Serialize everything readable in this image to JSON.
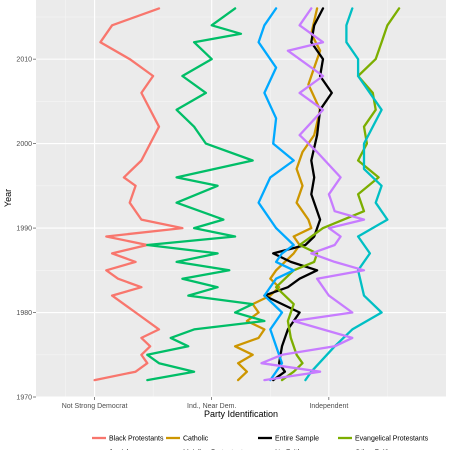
{
  "chart_data": {
    "type": "line",
    "xlabel": "Party Identification",
    "ylabel": "Year",
    "xlim": [
      0.5,
      7.5
    ],
    "ylim": [
      1970,
      2017
    ],
    "x_ticks": [
      {
        "value": 1.5,
        "label": "Not Strong Democrat"
      },
      {
        "value": 3.5,
        "label": "Ind., Near Dem."
      },
      {
        "value": 5.5,
        "label": "Independent"
      }
    ],
    "y_ticks": [
      1970,
      1980,
      1990,
      2000,
      2010
    ],
    "grid": true,
    "legend_position": "bottom",
    "legend_columns": 4,
    "series": [
      {
        "name": "Black Protestants",
        "color": "#F8766D",
        "points": [
          [
            1.5,
            1972
          ],
          [
            2.2,
            1973
          ],
          [
            2.4,
            1974
          ],
          [
            2.3,
            1975
          ],
          [
            2.45,
            1976
          ],
          [
            2.3,
            1977
          ],
          [
            2.6,
            1978
          ],
          [
            2.2,
            1980
          ],
          [
            1.8,
            1982
          ],
          [
            2.3,
            1983
          ],
          [
            1.9,
            1984
          ],
          [
            1.7,
            1985
          ],
          [
            2.2,
            1986
          ],
          [
            1.8,
            1987
          ],
          [
            2.4,
            1988
          ],
          [
            1.7,
            1989
          ],
          [
            3.0,
            1990
          ],
          [
            2.3,
            1991
          ],
          [
            2.1,
            1993
          ],
          [
            2.2,
            1995
          ],
          [
            2.0,
            1996
          ],
          [
            2.3,
            1998
          ],
          [
            2.6,
            2002
          ],
          [
            2.3,
            2006
          ],
          [
            2.5,
            2008
          ],
          [
            2.1,
            2010
          ],
          [
            1.6,
            2012
          ],
          [
            1.8,
            2014
          ],
          [
            2.6,
            2016
          ]
        ]
      },
      {
        "name": "Catholic",
        "color": "#CD9600",
        "points": [
          [
            3.95,
            1972
          ],
          [
            4.1,
            1973
          ],
          [
            3.95,
            1974
          ],
          [
            4.2,
            1975
          ],
          [
            3.9,
            1976
          ],
          [
            4.3,
            1977
          ],
          [
            4.4,
            1978
          ],
          [
            4.1,
            1979
          ],
          [
            4.3,
            1980
          ],
          [
            4.2,
            1981
          ],
          [
            4.5,
            1982
          ],
          [
            4.65,
            1983
          ],
          [
            4.5,
            1984
          ],
          [
            4.6,
            1985
          ],
          [
            4.9,
            1987
          ],
          [
            5.0,
            1988
          ],
          [
            4.9,
            1989
          ],
          [
            5.2,
            1990
          ],
          [
            5.15,
            1991
          ],
          [
            4.95,
            1993
          ],
          [
            5.05,
            1995
          ],
          [
            4.95,
            1997
          ],
          [
            5.05,
            1999
          ],
          [
            5.25,
            2001
          ],
          [
            5.35,
            2004
          ],
          [
            5.15,
            2007
          ],
          [
            5.25,
            2009
          ],
          [
            5.35,
            2011
          ],
          [
            5.2,
            2013
          ],
          [
            5.3,
            2016
          ]
        ]
      },
      {
        "name": "Entire Sample",
        "color": "#000000",
        "points": [
          [
            4.55,
            1972
          ],
          [
            4.75,
            1973
          ],
          [
            4.65,
            1974
          ],
          [
            4.7,
            1976
          ],
          [
            4.8,
            1978
          ],
          [
            5.0,
            1980
          ],
          [
            4.4,
            1982
          ],
          [
            4.8,
            1983
          ],
          [
            5.0,
            1984
          ],
          [
            5.3,
            1985
          ],
          [
            4.85,
            1986
          ],
          [
            4.55,
            1987
          ],
          [
            5.1,
            1988
          ],
          [
            5.25,
            1989
          ],
          [
            5.35,
            1991
          ],
          [
            5.2,
            1994
          ],
          [
            5.25,
            1996
          ],
          [
            5.2,
            1998
          ],
          [
            5.3,
            2001
          ],
          [
            5.35,
            2004
          ],
          [
            5.55,
            2006
          ],
          [
            5.35,
            2008
          ],
          [
            5.4,
            2010
          ],
          [
            5.2,
            2012
          ],
          [
            5.25,
            2014
          ],
          [
            5.4,
            2016
          ]
        ]
      },
      {
        "name": "Evangelical Protestants",
        "color": "#7CAE00",
        "points": [
          [
            4.7,
            1972
          ],
          [
            4.9,
            1973
          ],
          [
            5.05,
            1974
          ],
          [
            4.95,
            1975
          ],
          [
            4.85,
            1977
          ],
          [
            4.8,
            1979
          ],
          [
            4.9,
            1981
          ],
          [
            4.6,
            1983
          ],
          [
            4.9,
            1985
          ],
          [
            5.25,
            1986
          ],
          [
            5.3,
            1987
          ],
          [
            5.0,
            1988
          ],
          [
            5.4,
            1990
          ],
          [
            6.1,
            1992
          ],
          [
            6.0,
            1994
          ],
          [
            6.35,
            1996
          ],
          [
            6.0,
            1998
          ],
          [
            6.15,
            2000
          ],
          [
            6.1,
            2002
          ],
          [
            6.3,
            2004
          ],
          [
            6.25,
            2006
          ],
          [
            6.0,
            2008
          ],
          [
            6.3,
            2010
          ],
          [
            6.4,
            2012
          ],
          [
            6.5,
            2014
          ],
          [
            6.7,
            2016
          ]
        ]
      },
      {
        "name": "Jewish",
        "color": "#00BE67",
        "points": [
          [
            2.4,
            1972
          ],
          [
            3.2,
            1973
          ],
          [
            2.6,
            1974
          ],
          [
            2.4,
            1975
          ],
          [
            3.1,
            1976
          ],
          [
            2.8,
            1977
          ],
          [
            3.2,
            1978
          ],
          [
            4.4,
            1979
          ],
          [
            3.9,
            1980
          ],
          [
            4.2,
            1981
          ],
          [
            3.1,
            1982
          ],
          [
            3.6,
            1983
          ],
          [
            3.0,
            1984
          ],
          [
            3.8,
            1985
          ],
          [
            2.9,
            1986
          ],
          [
            3.6,
            1987
          ],
          [
            2.4,
            1988
          ],
          [
            3.9,
            1989
          ],
          [
            3.2,
            1990
          ],
          [
            3.7,
            1991
          ],
          [
            2.9,
            1993
          ],
          [
            3.6,
            1995
          ],
          [
            2.9,
            1996
          ],
          [
            4.2,
            1998
          ],
          [
            3.4,
            2000
          ],
          [
            3.2,
            2002
          ],
          [
            2.9,
            2004
          ],
          [
            3.4,
            2006
          ],
          [
            3.0,
            2008
          ],
          [
            3.5,
            2010
          ],
          [
            3.2,
            2012
          ],
          [
            4.0,
            2013
          ],
          [
            3.5,
            2014
          ],
          [
            3.9,
            2016
          ]
        ]
      },
      {
        "name": "Mainline Protestants",
        "color": "#00BFC4",
        "points": [
          [
            5.1,
            1972
          ],
          [
            5.2,
            1973
          ],
          [
            5.6,
            1976
          ],
          [
            5.9,
            1978
          ],
          [
            6.4,
            1980
          ],
          [
            6.1,
            1982
          ],
          [
            6.0,
            1985
          ],
          [
            6.2,
            1987
          ],
          [
            6.0,
            1989
          ],
          [
            6.5,
            1991
          ],
          [
            6.3,
            1993
          ],
          [
            6.4,
            1995
          ],
          [
            6.1,
            1997
          ],
          [
            6.1,
            2000
          ],
          [
            6.4,
            2004
          ],
          [
            6.0,
            2008
          ],
          [
            6.0,
            2010
          ],
          [
            5.8,
            2012
          ],
          [
            5.8,
            2014
          ],
          [
            5.9,
            2016
          ]
        ]
      },
      {
        "name": "No Faith",
        "color": "#00A9FF",
        "points": [
          [
            4.5,
            1972
          ],
          [
            4.7,
            1974
          ],
          [
            4.6,
            1976
          ],
          [
            4.5,
            1978
          ],
          [
            4.7,
            1980
          ],
          [
            4.4,
            1982
          ],
          [
            4.6,
            1984
          ],
          [
            4.9,
            1985
          ],
          [
            4.6,
            1986
          ],
          [
            4.7,
            1987
          ],
          [
            4.9,
            1988
          ],
          [
            4.6,
            1990
          ],
          [
            4.3,
            1993
          ],
          [
            4.5,
            1996
          ],
          [
            4.9,
            1998
          ],
          [
            4.55,
            2000
          ],
          [
            4.6,
            2003
          ],
          [
            4.4,
            2006
          ],
          [
            4.6,
            2009
          ],
          [
            4.3,
            2012
          ],
          [
            4.4,
            2014
          ],
          [
            4.6,
            2016
          ]
        ]
      },
      {
        "name": "Other Faith",
        "color": "#C77CFF",
        "points": [
          [
            4.4,
            1972
          ],
          [
            5.35,
            1973
          ],
          [
            4.35,
            1974
          ],
          [
            4.7,
            1975
          ],
          [
            5.6,
            1976
          ],
          [
            5.9,
            1977
          ],
          [
            4.9,
            1979
          ],
          [
            5.9,
            1980
          ],
          [
            5.5,
            1982
          ],
          [
            5.4,
            1983
          ],
          [
            5.3,
            1984
          ],
          [
            6.1,
            1985
          ],
          [
            5.6,
            1986
          ],
          [
            5.2,
            1987
          ],
          [
            5.6,
            1988
          ],
          [
            5.7,
            1989
          ],
          [
            5.5,
            1990
          ],
          [
            6.1,
            1991
          ],
          [
            5.6,
            1992
          ],
          [
            5.5,
            1994
          ],
          [
            5.7,
            1996
          ],
          [
            5.3,
            1999
          ],
          [
            5.0,
            2001
          ],
          [
            5.4,
            2004
          ],
          [
            5.0,
            2006
          ],
          [
            5.4,
            2008
          ],
          [
            4.8,
            2011
          ],
          [
            5.4,
            2012
          ],
          [
            5.0,
            2014
          ],
          [
            5.2,
            2016
          ]
        ]
      }
    ]
  }
}
